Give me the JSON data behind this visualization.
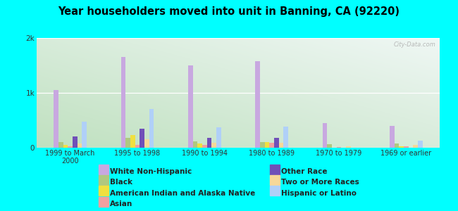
{
  "title": "Year householders moved into unit in Banning, CA (92220)",
  "categories": [
    "1999 to March\n2000",
    "1995 to 1998",
    "1990 to 1994",
    "1980 to 1989",
    "1970 to 1979",
    "1969 or earlier"
  ],
  "series": {
    "White Non-Hispanic": [
      1050,
      1650,
      1500,
      1580,
      450,
      400
    ],
    "Black": [
      100,
      180,
      110,
      100,
      60,
      75
    ],
    "American Indian and Alaska Native": [
      50,
      230,
      80,
      100,
      0,
      20
    ],
    "Asian": [
      25,
      55,
      50,
      90,
      15,
      20
    ],
    "Other Race": [
      200,
      350,
      180,
      180,
      0,
      0
    ],
    "Two or More Races": [
      75,
      155,
      90,
      85,
      25,
      55
    ],
    "Hispanic or Latino": [
      480,
      700,
      370,
      380,
      0,
      130
    ]
  },
  "colors": {
    "White Non-Hispanic": "#c8a8e0",
    "Black": "#b0c880",
    "American Indian and Alaska Native": "#f0e040",
    "Asian": "#f0a0a0",
    "Other Race": "#7050b8",
    "Two or More Races": "#f8d898",
    "Hispanic or Latino": "#b0d0f8"
  },
  "ylim": [
    0,
    2000
  ],
  "yticks": [
    0,
    1000,
    2000
  ],
  "ytick_labels": [
    "0",
    "1k",
    "2k"
  ],
  "background_color": "#00ffff",
  "watermark": "City-Data.com",
  "bar_width": 0.07,
  "legend_col1": [
    "White Non-Hispanic",
    "American Indian and Alaska Native",
    "Other Race",
    "Hispanic or Latino"
  ],
  "legend_col2": [
    "Black",
    "Asian",
    "Two or More Races"
  ]
}
